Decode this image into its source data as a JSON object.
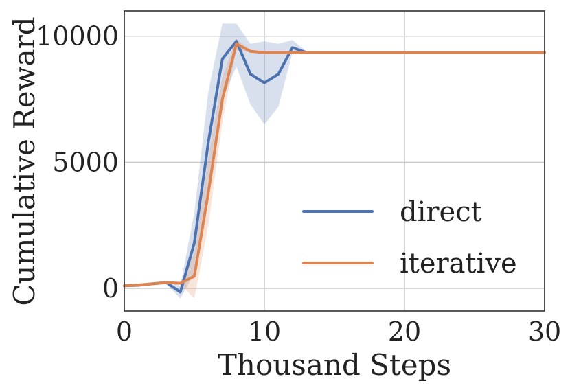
{
  "chart_data": {
    "type": "line",
    "title": "",
    "xlabel": "Thousand Steps",
    "ylabel": "Cumulative Reward",
    "xlim": [
      0,
      30
    ],
    "ylim": [
      -900,
      11000
    ],
    "xticks": [
      0,
      10,
      20,
      30
    ],
    "xtick_labels": [
      "0",
      "10",
      "20",
      "30"
    ],
    "yticks": [
      0,
      5000,
      10000
    ],
    "ytick_labels": [
      "0",
      "5000",
      "10000"
    ],
    "grid": true,
    "legend_position": "lower-right",
    "series": [
      {
        "name": "direct",
        "color": "#4c72b0",
        "x": [
          0,
          1,
          2,
          3,
          4,
          5,
          6,
          7,
          8,
          9,
          10,
          11,
          12,
          13,
          30
        ],
        "y": [
          100,
          120,
          180,
          230,
          -150,
          1800,
          5800,
          9100,
          9800,
          8500,
          8150,
          8500,
          9550,
          9350,
          9350
        ],
        "band_low": [
          100,
          110,
          160,
          180,
          -400,
          600,
          4200,
          7500,
          8800,
          7300,
          6500,
          7200,
          9350,
          9350,
          9350
        ],
        "band_high": [
          100,
          130,
          200,
          280,
          100,
          3000,
          7800,
          10500,
          10500,
          9700,
          9800,
          9700,
          9850,
          9400,
          9350
        ]
      },
      {
        "name": "iterative",
        "color": "#dd8452",
        "x": [
          0,
          1,
          2,
          3,
          4,
          5,
          6,
          7,
          8,
          9,
          10,
          11,
          12,
          13,
          30
        ],
        "y": [
          100,
          130,
          180,
          230,
          200,
          480,
          3800,
          7500,
          9700,
          9400,
          9350,
          9350,
          9350,
          9350,
          9350
        ],
        "band_low": [
          100,
          120,
          160,
          200,
          150,
          -400,
          2500,
          6600,
          9450,
          9350,
          9350,
          9350,
          9350,
          9350,
          9350
        ],
        "band_high": [
          100,
          140,
          200,
          260,
          250,
          1400,
          5200,
          8400,
          9900,
          9450,
          9380,
          9350,
          9350,
          9350,
          9350
        ]
      }
    ]
  }
}
